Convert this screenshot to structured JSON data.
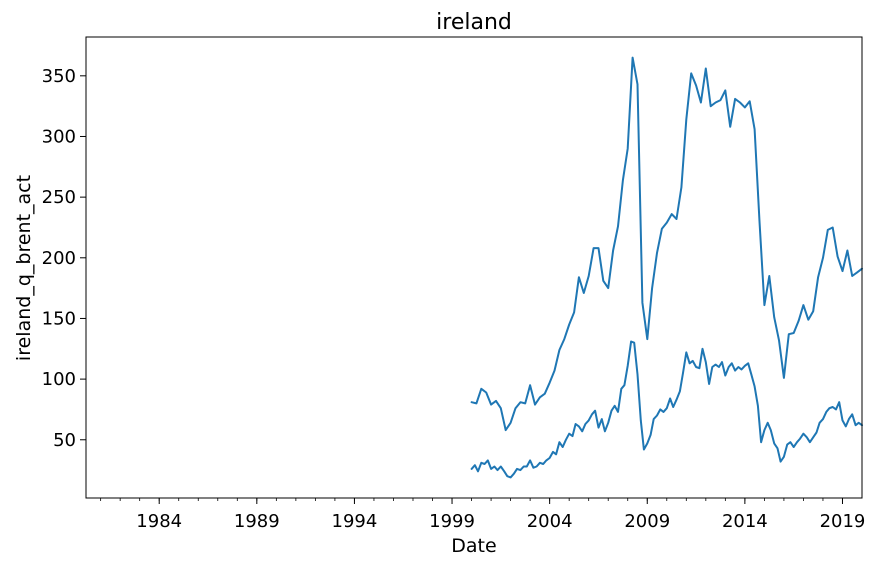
{
  "chart_data": {
    "type": "line",
    "title": "ireland",
    "xlabel": "Date",
    "ylabel": "ireland_q_brent_act",
    "xlim": [
      1980.25,
      2020.0
    ],
    "ylim": [
      2,
      382
    ],
    "grid": false,
    "legend": "none",
    "color": "#1f77b4",
    "x_ticks": [
      {
        "value": 1984,
        "label": "1984"
      },
      {
        "value": 1989,
        "label": "1989"
      },
      {
        "value": 1994,
        "label": "1994"
      },
      {
        "value": 1999,
        "label": "1999"
      },
      {
        "value": 2004,
        "label": "2004"
      },
      {
        "value": 2009,
        "label": "2009"
      },
      {
        "value": 2014,
        "label": "2014"
      },
      {
        "value": 2019,
        "label": "2019"
      }
    ],
    "y_ticks": [
      {
        "value": 50,
        "label": "50"
      },
      {
        "value": 100,
        "label": "100"
      },
      {
        "value": 150,
        "label": "150"
      },
      {
        "value": 200,
        "label": "200"
      },
      {
        "value": 250,
        "label": "250"
      },
      {
        "value": 300,
        "label": "300"
      },
      {
        "value": 350,
        "label": "350"
      }
    ],
    "series": [
      {
        "x": [
          2000.0,
          2000.25,
          2000.5,
          2000.75,
          2001.0,
          2001.25,
          2001.5,
          2001.75,
          2002.0,
          2002.25,
          2002.5,
          2002.75,
          2003.0,
          2003.25,
          2003.5,
          2003.75,
          2004.0,
          2004.25,
          2004.5,
          2004.75,
          2005.0,
          2005.25,
          2005.5,
          2005.75,
          2006.0,
          2006.25,
          2006.5,
          2006.75,
          2007.0,
          2007.25,
          2007.5,
          2007.75,
          2008.0,
          2008.25,
          2008.5,
          2008.75,
          2009.0,
          2009.25,
          2009.5,
          2009.75,
          2010.0,
          2010.25,
          2010.5,
          2010.75,
          2011.0,
          2011.25,
          2011.5,
          2011.75,
          2012.0,
          2012.25,
          2012.5,
          2012.75,
          2013.0,
          2013.25,
          2013.5,
          2013.75,
          2014.0,
          2014.25,
          2014.5,
          2014.75,
          2015.0,
          2015.25,
          2015.5,
          2015.75,
          2016.0,
          2016.25,
          2016.5,
          2016.75,
          2017.0,
          2017.25,
          2017.5,
          2017.75,
          2018.0,
          2018.25,
          2018.5,
          2018.75,
          2019.0,
          2019.25,
          2019.5,
          2019.75,
          2020.0
        ],
        "values": [
          81,
          80,
          92,
          89,
          79,
          82,
          76,
          58,
          64,
          76,
          81,
          80,
          95,
          79,
          85,
          88,
          97,
          107,
          124,
          133,
          145,
          155,
          184,
          171,
          185,
          208,
          208,
          181,
          175,
          206,
          226,
          264,
          290,
          365,
          343,
          163,
          133,
          175,
          204,
          224,
          229,
          236,
          232,
          258,
          314,
          352,
          342,
          328,
          356,
          325,
          328,
          330,
          338,
          308,
          331,
          328,
          324,
          329,
          306,
          230,
          161,
          185,
          151,
          132,
          101,
          137,
          138,
          148,
          161,
          149,
          156,
          184,
          200,
          223,
          225,
          201,
          189,
          206,
          185,
          188,
          191
        ]
      },
      {
        "x": [
          2000.0,
          2000.17,
          2000.33,
          2000.5,
          2000.67,
          2000.83,
          2001.0,
          2001.17,
          2001.33,
          2001.5,
          2001.67,
          2001.83,
          2002.0,
          2002.17,
          2002.33,
          2002.5,
          2002.67,
          2002.83,
          2003.0,
          2003.17,
          2003.33,
          2003.5,
          2003.67,
          2003.83,
          2004.0,
          2004.17,
          2004.33,
          2004.5,
          2004.67,
          2004.83,
          2005.0,
          2005.17,
          2005.33,
          2005.5,
          2005.67,
          2005.83,
          2006.0,
          2006.17,
          2006.33,
          2006.5,
          2006.67,
          2006.83,
          2007.0,
          2007.17,
          2007.33,
          2007.5,
          2007.67,
          2007.83,
          2008.0,
          2008.17,
          2008.33,
          2008.5,
          2008.67,
          2008.83,
          2009.0,
          2009.17,
          2009.33,
          2009.5,
          2009.67,
          2009.83,
          2010.0,
          2010.17,
          2010.33,
          2010.5,
          2010.67,
          2010.83,
          2011.0,
          2011.17,
          2011.33,
          2011.5,
          2011.67,
          2011.83,
          2012.0,
          2012.17,
          2012.33,
          2012.5,
          2012.67,
          2012.83,
          2013.0,
          2013.17,
          2013.33,
          2013.5,
          2013.67,
          2013.83,
          2014.0,
          2014.17,
          2014.33,
          2014.5,
          2014.67,
          2014.83,
          2015.0,
          2015.17,
          2015.33,
          2015.5,
          2015.67,
          2015.83,
          2016.0,
          2016.17,
          2016.33,
          2016.5,
          2016.67,
          2016.83,
          2017.0,
          2017.17,
          2017.33,
          2017.5,
          2017.67,
          2017.83,
          2018.0,
          2018.17,
          2018.33,
          2018.5,
          2018.67,
          2018.83,
          2019.0,
          2019.17,
          2019.33,
          2019.5,
          2019.67,
          2019.83,
          2020.0
        ],
        "values": [
          26,
          29,
          24,
          31,
          30,
          33,
          26,
          28,
          25,
          28,
          24,
          20,
          19,
          22,
          26,
          25,
          28,
          28,
          33,
          27,
          28,
          31,
          30,
          33,
          35,
          40,
          38,
          48,
          44,
          50,
          55,
          53,
          63,
          61,
          57,
          63,
          66,
          71,
          74,
          60,
          67,
          57,
          64,
          74,
          78,
          73,
          92,
          95,
          111,
          131,
          130,
          104,
          66,
          42,
          47,
          54,
          67,
          70,
          75,
          73,
          76,
          84,
          77,
          83,
          90,
          105,
          122,
          113,
          115,
          110,
          109,
          125,
          114,
          96,
          110,
          112,
          110,
          114,
          103,
          110,
          113,
          107,
          110,
          108,
          111,
          113,
          104,
          94,
          78,
          48,
          58,
          64,
          58,
          47,
          43,
          32,
          36,
          46,
          48,
          44,
          48,
          51,
          55,
          52,
          48,
          52,
          56,
          64,
          67,
          73,
          76,
          77,
          75,
          81,
          66,
          61,
          67,
          71,
          62,
          64,
          62
        ]
      }
    ]
  }
}
